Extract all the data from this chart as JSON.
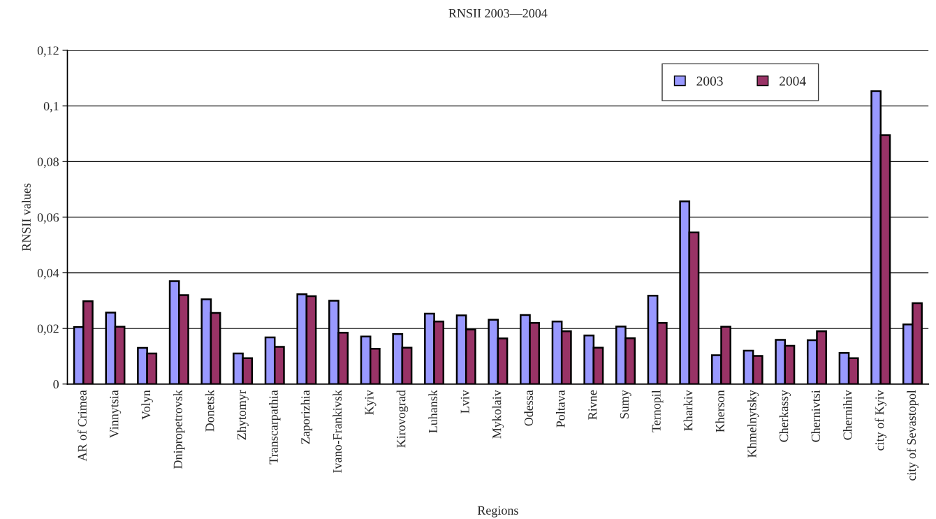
{
  "chart_data": {
    "type": "bar",
    "title": "RNSII 2003—2004",
    "xlabel": "Regions",
    "ylabel": "RNSII values",
    "categories": [
      "AR of Crimea",
      "Vinnytsia",
      "Volyn",
      "Dnipropetrovsk",
      "Donetsk",
      "Zhytomyr",
      "Transcarpathia",
      "Zaporizhia",
      "Ivano-Frankivsk",
      "Kyiv",
      "Kirovograd",
      "Luhansk",
      "Lviv",
      "Mykolaiv",
      "Odessa",
      "Poltava",
      "Rivne",
      "Sumy",
      "Ternopil",
      "Kharkiv",
      "Kherson",
      "Khmelnytsky",
      "Cherkassy",
      "Chernivtsi",
      "Chernihiv",
      "city of Kyiv",
      "city of Sevastopol"
    ],
    "series": [
      {
        "name": "2003",
        "color": "#9999ff",
        "values": [
          0.0205,
          0.0257,
          0.013,
          0.037,
          0.0305,
          0.011,
          0.0168,
          0.0323,
          0.03,
          0.0171,
          0.018,
          0.0253,
          0.0247,
          0.0231,
          0.0248,
          0.0225,
          0.0175,
          0.0207,
          0.0318,
          0.0657,
          0.0104,
          0.012,
          0.0159,
          0.0158,
          0.0112,
          0.1053,
          0.0214
        ]
      },
      {
        "name": "2004",
        "color": "#993366",
        "values": [
          0.0298,
          0.0206,
          0.011,
          0.032,
          0.0256,
          0.0093,
          0.0134,
          0.0316,
          0.0185,
          0.0127,
          0.0131,
          0.0225,
          0.0196,
          0.0164,
          0.022,
          0.019,
          0.0131,
          0.0165,
          0.022,
          0.0545,
          0.0206,
          0.0101,
          0.0138,
          0.019,
          0.0093,
          0.0895,
          0.0291
        ]
      }
    ],
    "ylim": [
      0,
      0.12
    ],
    "yticks": [
      {
        "value": 0,
        "label": "0"
      },
      {
        "value": 0.02,
        "label": "0,02"
      },
      {
        "value": 0.04,
        "label": "0,04"
      },
      {
        "value": 0.06,
        "label": "0,06"
      },
      {
        "value": 0.08,
        "label": "0,08"
      },
      {
        "value": 0.1,
        "label": "0,1"
      },
      {
        "value": 0.12,
        "label": "0,12"
      }
    ],
    "grid": "y",
    "legend": "top right"
  }
}
